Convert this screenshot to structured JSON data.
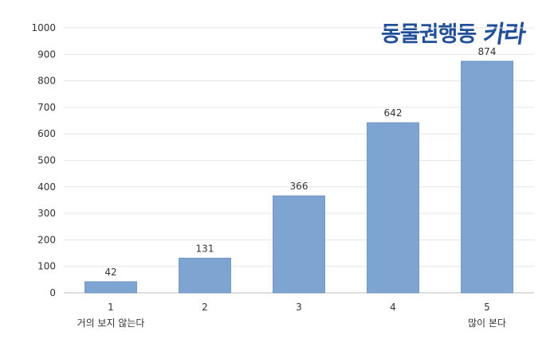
{
  "logo": {
    "text": "동물권행동",
    "mark": "카라"
  },
  "chart_data": {
    "type": "bar",
    "categories": [
      "1",
      "2",
      "3",
      "4",
      "5"
    ],
    "category_sublabels": [
      "거의 보지 않는다",
      "",
      "",
      "",
      "많이 본다"
    ],
    "values": [
      42,
      131,
      366,
      642,
      874
    ],
    "data_labels": [
      "42",
      "131",
      "366",
      "642",
      "874"
    ],
    "ylim": [
      0,
      1000
    ],
    "yticks": [
      0,
      100,
      200,
      300,
      400,
      500,
      600,
      700,
      800,
      900,
      1000
    ],
    "grid": true,
    "legend": "none",
    "bar_color": "#7ea4d1",
    "bar_edge_color": "#6f95c4"
  }
}
